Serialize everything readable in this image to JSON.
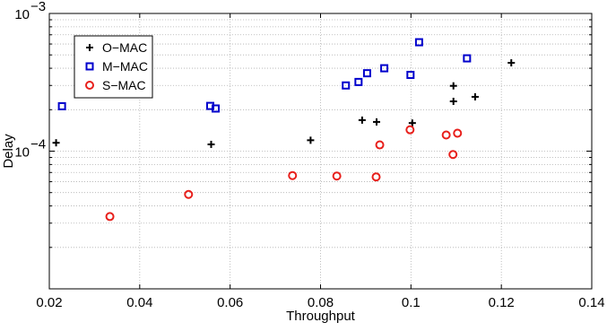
{
  "chart_data": {
    "type": "scatter",
    "xlabel": "Throughput",
    "ylabel": "Delay",
    "xlim": [
      0.02,
      0.14
    ],
    "ylim": [
      1e-05,
      0.001
    ],
    "y_scale": "log",
    "grid": "major-and-minor dotted",
    "legend_position": "top-left",
    "x_ticks": [
      0.02,
      0.04,
      0.06,
      0.08,
      0.1,
      0.12,
      0.14
    ],
    "x_tick_labels": [
      "0.02",
      "0.04",
      "0.06",
      "0.08",
      "0.1",
      "0.12",
      "0.14"
    ],
    "y_ticks": [
      {
        "value": 0.0001,
        "base": "10",
        "exp": "−4"
      },
      {
        "value": 0.001,
        "base": "10",
        "exp": "−3"
      }
    ],
    "series": [
      {
        "name": "O−MAC",
        "marker": "plus",
        "color": "#000000",
        "points": [
          [
            0.0215,
            0.000115
          ],
          [
            0.0558,
            0.000112
          ],
          [
            0.0778,
            0.00012
          ],
          [
            0.0892,
            0.000168
          ],
          [
            0.0924,
            0.000163
          ],
          [
            0.1003,
            0.00016
          ],
          [
            0.1094,
            0.000298
          ],
          [
            0.1094,
            0.00023
          ],
          [
            0.1142,
            0.000248
          ],
          [
            0.1222,
            0.000438
          ]
        ]
      },
      {
        "name": "M−MAC",
        "marker": "square",
        "color": "#0000cc",
        "points": [
          [
            0.0228,
            0.000212
          ],
          [
            0.0556,
            0.000213
          ],
          [
            0.0568,
            0.000204
          ],
          [
            0.0856,
            0.0003
          ],
          [
            0.0884,
            0.000318
          ],
          [
            0.0903,
            0.000368
          ],
          [
            0.0941,
            0.0004
          ],
          [
            0.0999,
            0.000358
          ],
          [
            0.1018,
            0.000618
          ],
          [
            0.1124,
            0.000472
          ]
        ]
      },
      {
        "name": "S−MAC",
        "marker": "circle",
        "color": "#e8201c",
        "points": [
          [
            0.0334,
            3.35e-05
          ],
          [
            0.0508,
            4.85e-05
          ],
          [
            0.0738,
            6.65e-05
          ],
          [
            0.0836,
            6.6e-05
          ],
          [
            0.0923,
            6.5e-05
          ],
          [
            0.0931,
            0.000111
          ],
          [
            0.0998,
            0.000143
          ],
          [
            0.1078,
            0.000131
          ],
          [
            0.1093,
            9.45e-05
          ],
          [
            0.1103,
            0.000135
          ]
        ]
      }
    ]
  }
}
